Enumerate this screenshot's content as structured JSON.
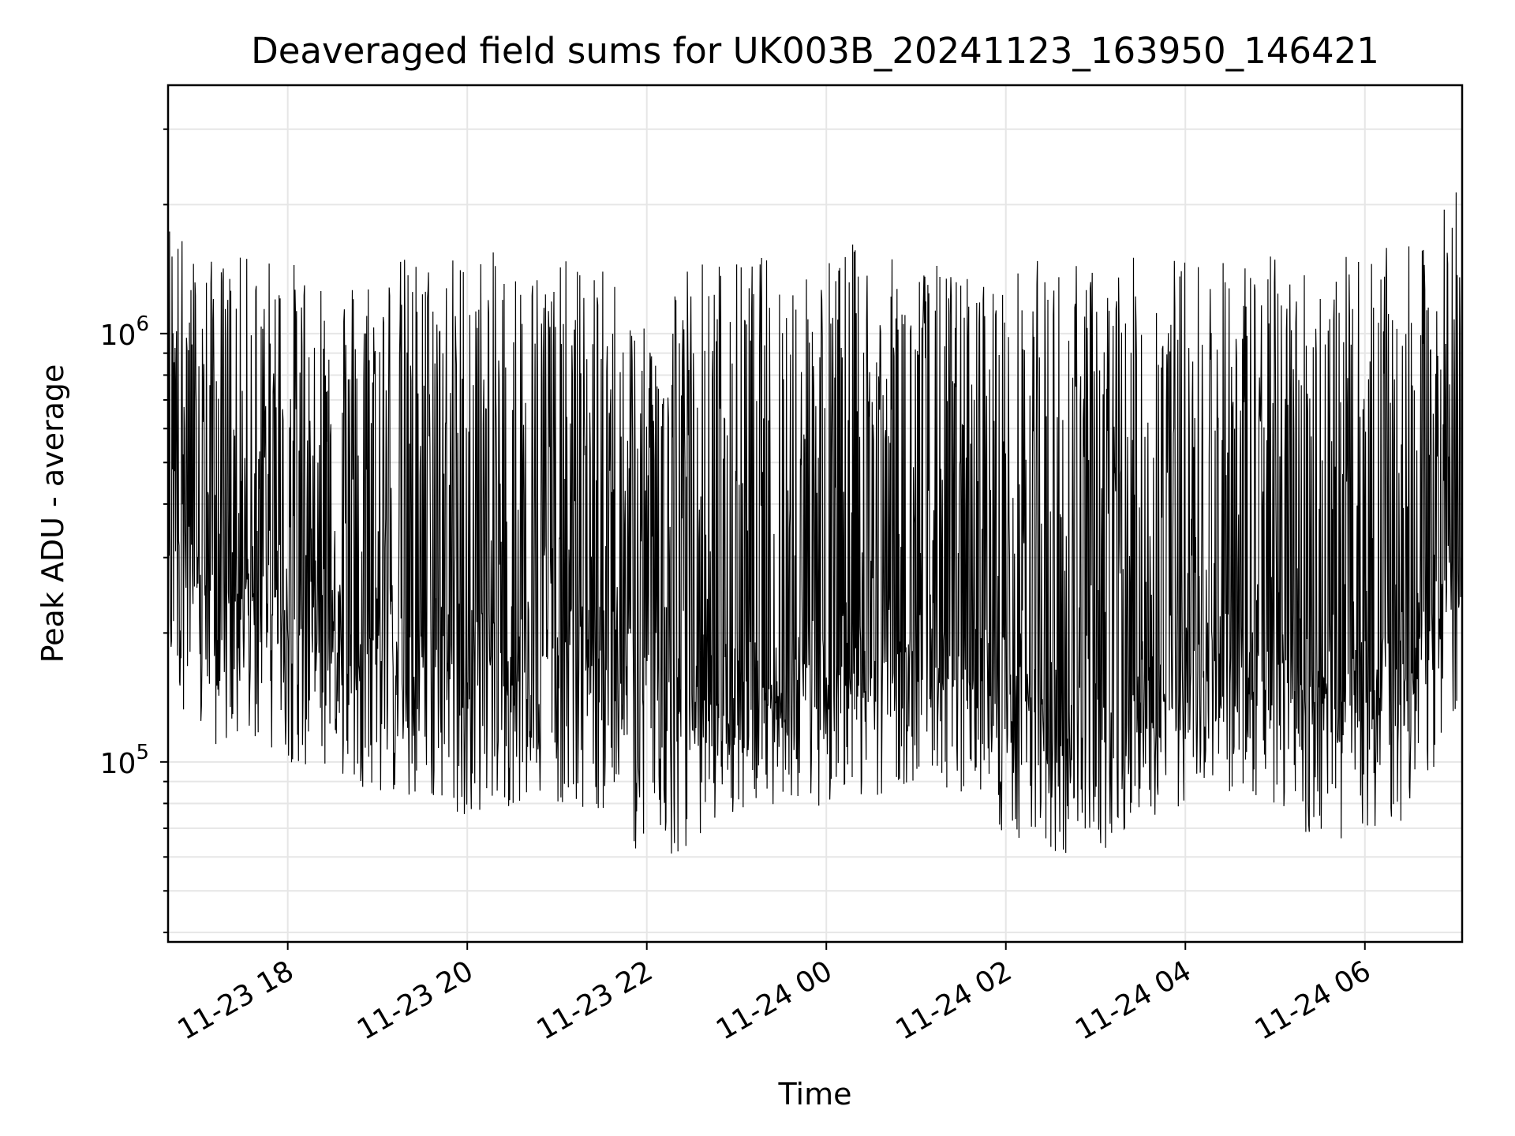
{
  "chart_data": {
    "type": "line",
    "title": "Deaveraged field sums for UK003B_20241123_163950_146421",
    "xlabel": "Time",
    "ylabel": "Peak ADU - average",
    "x_range": [
      "2024-11-23 16:40",
      "2024-11-24 07:05"
    ],
    "y_scale": "log",
    "ylim": [
      38000,
      3800000
    ],
    "grid": true,
    "legend": "none",
    "colors": {
      "line": "#000000",
      "grid": "#e6e6e6",
      "background": "#ffffff"
    },
    "x_ticks": [
      {
        "t": "2024-11-23 18:00",
        "label": "11-23 18"
      },
      {
        "t": "2024-11-23 20:00",
        "label": "11-23 20"
      },
      {
        "t": "2024-11-23 22:00",
        "label": "11-23 22"
      },
      {
        "t": "2024-11-24 00:00",
        "label": "11-24 00"
      },
      {
        "t": "2024-11-24 02:00",
        "label": "11-24 02"
      },
      {
        "t": "2024-11-24 04:00",
        "label": "11-24 04"
      },
      {
        "t": "2024-11-24 06:00",
        "label": "11-24 06"
      }
    ],
    "y_ticks": [
      {
        "value": 100000,
        "base": "10",
        "exp": "5"
      },
      {
        "value": 1000000,
        "base": "10",
        "exp": "6"
      }
    ],
    "series": [
      {
        "name": "",
        "x": [
          "2024-11-23 16:40",
          "2024-11-23 17:00",
          "2024-11-23 17:20",
          "2024-11-23 17:40",
          "2024-11-23 18:00",
          "2024-11-23 18:20",
          "2024-11-23 18:40",
          "2024-11-23 19:00",
          "2024-11-23 19:20",
          "2024-11-23 19:40",
          "2024-11-23 20:00",
          "2024-11-23 20:20",
          "2024-11-23 20:40",
          "2024-11-23 21:00",
          "2024-11-23 21:20",
          "2024-11-23 21:40",
          "2024-11-23 22:00",
          "2024-11-23 22:20",
          "2024-11-23 22:40",
          "2024-11-23 23:00",
          "2024-11-23 23:20",
          "2024-11-23 23:40",
          "2024-11-24 00:00",
          "2024-11-24 00:20",
          "2024-11-24 00:40",
          "2024-11-24 01:00",
          "2024-11-24 01:20",
          "2024-11-24 01:40",
          "2024-11-24 02:00",
          "2024-11-24 02:20",
          "2024-11-24 02:40",
          "2024-11-24 03:00",
          "2024-11-24 03:20",
          "2024-11-24 03:40",
          "2024-11-24 04:00",
          "2024-11-24 04:20",
          "2024-11-24 04:40",
          "2024-11-24 05:00",
          "2024-11-24 05:20",
          "2024-11-24 05:40",
          "2024-11-24 06:00",
          "2024-11-24 06:20",
          "2024-11-24 06:40",
          "2024-11-24 07:00"
        ],
        "baseline": [
          420000,
          300000,
          260000,
          250000,
          240000,
          230000,
          210000,
          205000,
          200000,
          190000,
          180000,
          185000,
          190000,
          200000,
          190000,
          175000,
          160000,
          150000,
          140000,
          145000,
          150000,
          160000,
          180000,
          190000,
          200000,
          190000,
          175000,
          165000,
          150000,
          130000,
          125000,
          120000,
          130000,
          140000,
          160000,
          170000,
          175000,
          165000,
          150000,
          145000,
          150000,
          170000,
          200000,
          320000
        ],
        "high": [
          2000000,
          1500000,
          1500000,
          1550000,
          1500000,
          1450000,
          1400000,
          1500000,
          1550000,
          1550000,
          1600000,
          1550000,
          1500000,
          1500000,
          1450000,
          1400000,
          1000000,
          1550000,
          1550000,
          1500000,
          1550000,
          1550000,
          1550000,
          1650000,
          1500000,
          1500000,
          1450000,
          1400000,
          1400000,
          1500000,
          1500000,
          1450000,
          1500000,
          1550000,
          1550000,
          1500000,
          1550000,
          1550000,
          1500000,
          1500000,
          1550000,
          1600000,
          1600000,
          2300000
        ],
        "low": [
          160000,
          110000,
          105000,
          110000,
          100000,
          95000,
          90000,
          85000,
          80000,
          78000,
          75000,
          78000,
          80000,
          80000,
          78000,
          75000,
          55000,
          60000,
          70000,
          75000,
          80000,
          78000,
          78000,
          80000,
          85000,
          90000,
          85000,
          85000,
          65000,
          62000,
          60000,
          62000,
          65000,
          72000,
          80000,
          85000,
          85000,
          78000,
          65000,
          65000,
          65000,
          72000,
          75000,
          130000
        ]
      }
    ]
  }
}
